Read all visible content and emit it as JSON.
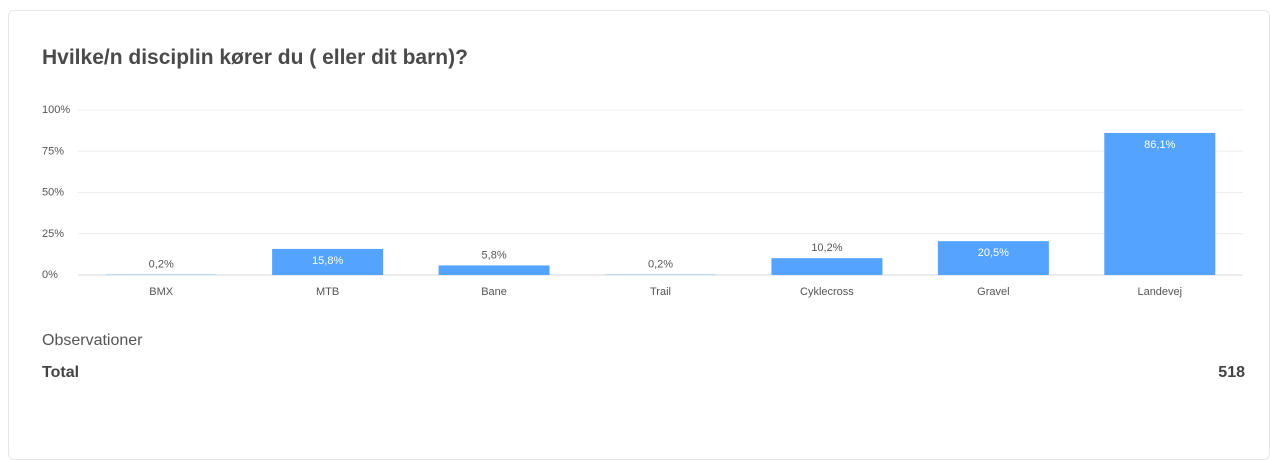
{
  "title": "Hvilke/n disciplin kører du ( eller dit barn)?",
  "chart_data": {
    "type": "bar",
    "categories": [
      "BMX",
      "MTB",
      "Bane",
      "Trail",
      "Cyklecross",
      "Gravel",
      "Landevej"
    ],
    "values": [
      0.2,
      15.8,
      5.8,
      0.2,
      10.2,
      20.5,
      86.1
    ],
    "value_labels": [
      "0,2%",
      "15,8%",
      "5,8%",
      "0,2%",
      "10,2%",
      "20,5%",
      "86,1%"
    ],
    "yticks": [
      0,
      25,
      50,
      75,
      100
    ],
    "ytick_labels": [
      "0%",
      "25%",
      "50%",
      "75%",
      "100%"
    ],
    "ylim": [
      0,
      100
    ],
    "grid": true,
    "bar_color": "#54a3ff"
  },
  "observations": {
    "heading": "Observationer",
    "total_label": "Total",
    "total_value": "518"
  }
}
